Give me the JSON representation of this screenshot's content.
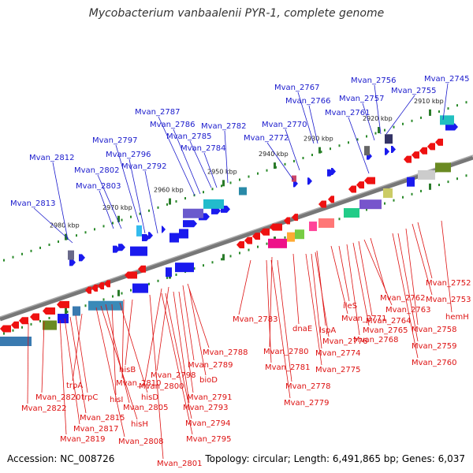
{
  "title": "Mycobacterium vanbaalenii PYR-1, complete genome",
  "footer": {
    "accession": "Accession: NC_008726",
    "summary": "Topology: circular; Length: 6,491,865 bp; Genes: 6,037"
  },
  "ruler_ticks": [
    "2910 kbp",
    "2920 kbp",
    "2930 kbp",
    "2940 kbp",
    "2950 kbp",
    "2960 kbp",
    "2970 kbp",
    "2980 kbp"
  ],
  "colors": {
    "plus_label": "#1a1acc",
    "minus_label": "#dd1111",
    "plus_gene": "#1a1aee",
    "minus_gene": "#ee1111",
    "backbone": "#777777",
    "tick_dots": "#2a8a2a"
  },
  "plus_labels": [
    "Mvan_2745",
    "Mvan_2755",
    "Mvan_2756",
    "Mvan_2757",
    "Mvan_2761",
    "Mvan_2766",
    "Mvan_2767",
    "Mvan_2770",
    "Mvan_2772",
    "Mvan_2782",
    "Mvan_2784",
    "Mvan_2785",
    "Mvan_2786",
    "Mvan_2787",
    "Mvan_2792",
    "Mvan_2796",
    "Mvan_2797",
    "Mvan_2802",
    "Mvan_2803",
    "Mvan_2812",
    "Mvan_2813"
  ],
  "minus_labels": [
    "Mvan_2752",
    "Mvan_2753",
    "hemH",
    "Mvan_2758",
    "Mvan_2759",
    "Mvan_2760",
    "Mvan_2762",
    "Mvan_2763",
    "Mvan_2764",
    "Mvan_2765",
    "Mvan_2768",
    "ileS",
    "Mvan_2771",
    "lspA",
    "Mvan_2776",
    "Mvan_2774",
    "Mvan_2775",
    "dnaE",
    "Mvan_2783",
    "Mvan_2780",
    "Mvan_2781",
    "Mvan_2778",
    "Mvan_2779",
    "Mvan_2788",
    "Mvan_2789",
    "bioD",
    "Mvan_2798",
    "Mvan_2800",
    "Mvan_2791",
    "Mvan_2793",
    "Mvan_2794",
    "Mvan_2795",
    "Mvan_2801",
    "hisB",
    "Mvan_2810",
    "hisD",
    "hisI",
    "Mvan_2805",
    "hisH",
    "Mvan_2808",
    "trpA",
    "trpC",
    "Mvan_2815",
    "Mvan_2817",
    "Mvan_2819",
    "Mvan_2820",
    "Mvan_2822"
  ]
}
